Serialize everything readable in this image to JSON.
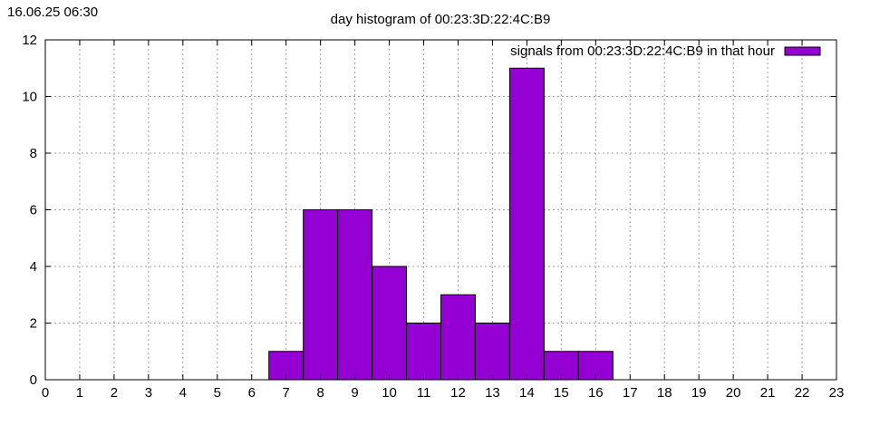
{
  "timestamp": "16.06.25 06:30",
  "chart_data": {
    "type": "bar",
    "title": "day histogram of 00:23:3D:22:4C:B9",
    "xlabel": "",
    "ylabel": "",
    "x_ticks": [
      "0",
      "1",
      "2",
      "3",
      "4",
      "5",
      "6",
      "7",
      "8",
      "9",
      "10",
      "11",
      "12",
      "13",
      "14",
      "15",
      "16",
      "17",
      "18",
      "19",
      "20",
      "21",
      "22",
      "23"
    ],
    "y_ticks": [
      "0",
      "2",
      "4",
      "6",
      "8",
      "10",
      "12"
    ],
    "xlim": [
      0,
      23
    ],
    "ylim": [
      0,
      12
    ],
    "grid": true,
    "legend_position": "top-right",
    "series": [
      {
        "name": "signals from 00:23:3D:22:4C:B9 in that hour",
        "color": "#9400d3",
        "hours": [
          7,
          8,
          9,
          10,
          11,
          12,
          13,
          14,
          15,
          16
        ],
        "values": [
          1,
          6,
          6,
          4,
          2,
          3,
          2,
          11,
          1,
          1
        ]
      }
    ]
  }
}
